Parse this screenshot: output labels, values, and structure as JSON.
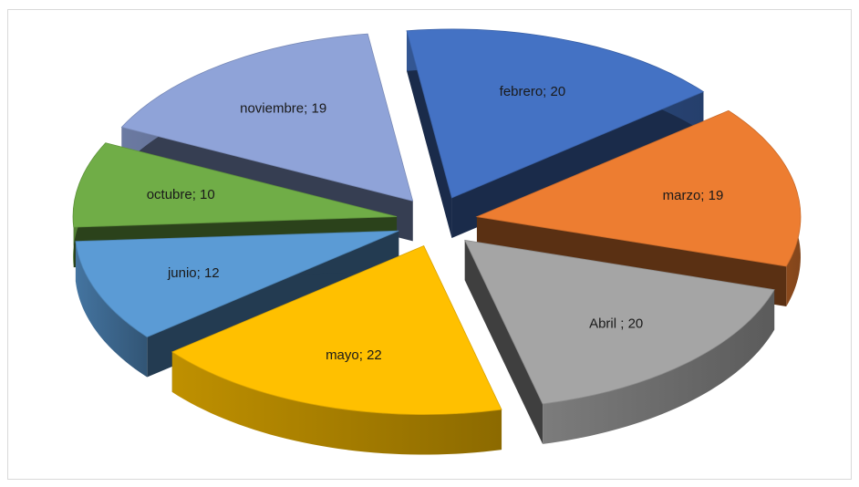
{
  "chart_data": {
    "type": "pie",
    "style": "3d-exploded",
    "title": "",
    "legend": "none",
    "slices": [
      {
        "label": "febrero",
        "value": 20,
        "display": "febrero; 20",
        "color": "#4472c4"
      },
      {
        "label": "marzo",
        "value": 19,
        "display": "marzo; 19",
        "color": "#ed7d31"
      },
      {
        "label": "Abril",
        "value": 20,
        "display": "Abril ; 20",
        "color": "#a5a5a5"
      },
      {
        "label": "mayo",
        "value": 22,
        "display": "mayo; 22",
        "color": "#ffc000"
      },
      {
        "label": "junio",
        "value": 12,
        "display": "junio; 12",
        "color": "#5b9bd5"
      },
      {
        "label": "octubre",
        "value": 10,
        "display": "octubre; 10",
        "color": "#70ad47"
      },
      {
        "label": "noviembre",
        "value": 19,
        "display": "noviembre; 19",
        "color": "#8fa3d8"
      }
    ]
  }
}
